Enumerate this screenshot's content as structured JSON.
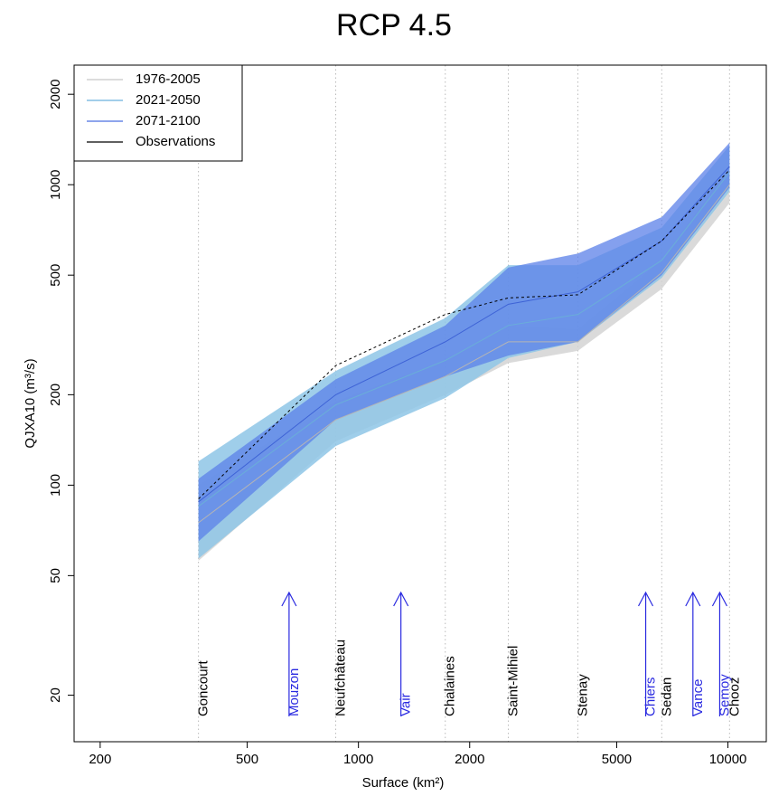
{
  "chart_data": {
    "type": "band",
    "title": "RCP 4.5",
    "xlabel": "Surface (km²)",
    "ylabel": "QJXA10 (m³/s)",
    "xlog": true,
    "ylog": true,
    "xlim": [
      170,
      12700
    ],
    "ylim": [
      14,
      2500
    ],
    "xticks": [
      200,
      500,
      1000,
      2000,
      5000,
      10000
    ],
    "yticks": [
      20,
      50,
      100,
      200,
      500,
      1000,
      2000
    ],
    "x": [
      369,
      868,
      1718,
      2545,
      3926,
      6620,
      10100
    ],
    "x_labels": [
      "Goncourt",
      "Neufchâteau",
      "Chalaines",
      "Saint-Mihiel",
      "Stenay",
      "Sedan",
      "Chooz"
    ],
    "tributaries": [
      {
        "name": "Mouzon",
        "x": 649
      },
      {
        "name": "Vair",
        "x": 1303
      },
      {
        "name": "Chiers",
        "x": 5990
      },
      {
        "name": "Vance",
        "x": 8040
      },
      {
        "name": "Semoy",
        "x": 9500
      }
    ],
    "series": [
      {
        "name": "1976-2005",
        "color": "#d4d4d4",
        "values": [
          75,
          165,
          230,
          300,
          300,
          510,
          1000
        ],
        "lower": [
          56,
          140,
          200,
          255,
          280,
          450,
          870
        ],
        "upper": [
          100,
          190,
          260,
          340,
          330,
          560,
          1150
        ]
      },
      {
        "name": "2021-2050",
        "color": "#8ec5e6",
        "values": [
          85,
          185,
          260,
          340,
          370,
          560,
          1100
        ],
        "lower": [
          57,
          135,
          195,
          265,
          300,
          490,
          950
        ],
        "upper": [
          120,
          240,
          360,
          540,
          540,
          720,
          1350
        ]
      },
      {
        "name": "2071-2100",
        "color": "#5b80e8",
        "values": [
          88,
          200,
          300,
          400,
          440,
          650,
          1150
        ],
        "lower": [
          65,
          165,
          230,
          270,
          300,
          500,
          980
        ],
        "upper": [
          105,
          225,
          340,
          530,
          590,
          780,
          1380
        ]
      },
      {
        "name": "Observations",
        "color": "#000000",
        "dashed": true,
        "values": [
          90,
          250,
          370,
          420,
          430,
          650,
          1120
        ]
      }
    ],
    "legend": "top-left"
  }
}
